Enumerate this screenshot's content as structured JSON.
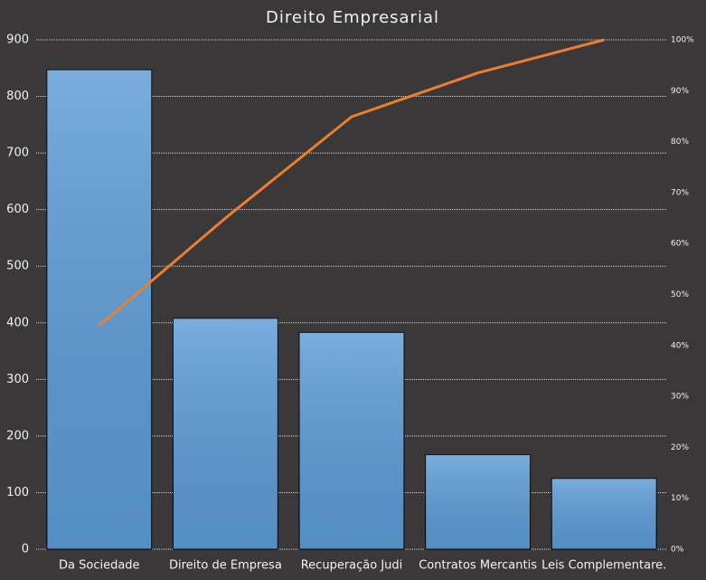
{
  "chart_data": {
    "type": "pareto",
    "title": "Direito Empresarial",
    "categories": [
      "Da Sociedade",
      "Direito de Empresa",
      "Recuperação Judi",
      "Contratos Mercantis",
      "Leis Complementare."
    ],
    "series": [
      {
        "type": "bar",
        "color": "#5b9bd5",
        "values": [
          847,
          408,
          383,
          167,
          125
        ]
      },
      {
        "type": "line",
        "axis": "y2",
        "color": "#ed7d31",
        "values": [
          43.9,
          65.0,
          84.9,
          93.5,
          100
        ]
      }
    ],
    "ylim": [
      0,
      900
    ],
    "yticks": [
      0,
      100,
      200,
      300,
      400,
      500,
      600,
      700,
      800,
      900
    ],
    "y2lim": [
      0,
      100
    ],
    "y2ticks": [
      {
        "value": 0,
        "label": "0%"
      },
      {
        "value": 10,
        "label": "10%"
      },
      {
        "value": 20,
        "label": "20%"
      },
      {
        "value": 30,
        "label": "30%"
      },
      {
        "value": 40,
        "label": "40%"
      },
      {
        "value": 50,
        "label": "50%"
      },
      {
        "value": 60,
        "label": "60%"
      },
      {
        "value": 70,
        "label": "70%"
      },
      {
        "value": 80,
        "label": "80%"
      },
      {
        "value": 90,
        "label": "90%"
      },
      {
        "value": 100,
        "label": "100%"
      }
    ],
    "grid": true
  }
}
